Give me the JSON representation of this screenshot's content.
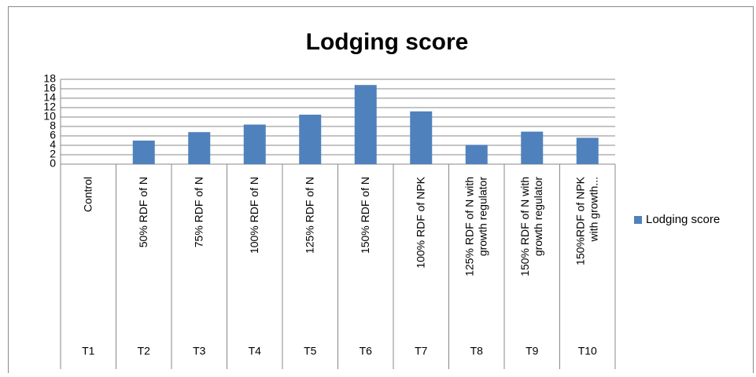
{
  "chart_data": {
    "type": "bar",
    "title": "Lodging score",
    "categories": [
      "Control",
      "50% RDF of N",
      "75% RDF of N",
      "100% RDF of N",
      "125% RDF of N",
      "150% RDF of N",
      "100% RDF of NPK",
      "125% RDF of N with\ngrowth regulator",
      "150% RDF of N  with\ngrowth regulator",
      "150%RDF of NPK\nwith growth..."
    ],
    "groups": [
      "T1",
      "T2",
      "T3",
      "T4",
      "T5",
      "T6",
      "T7",
      "T8",
      "T9",
      "T10"
    ],
    "series": [
      {
        "name": "Lodging score",
        "color": "#4f81bd",
        "values": [
          0,
          5,
          6.8,
          8.4,
          10.5,
          16.8,
          11.2,
          4.1,
          6.9,
          5.6
        ]
      }
    ],
    "ylim": [
      0,
      18
    ],
    "yticks": [
      0,
      2,
      4,
      6,
      8,
      10,
      12,
      14,
      16,
      18
    ],
    "grid": true,
    "legend": "right"
  }
}
